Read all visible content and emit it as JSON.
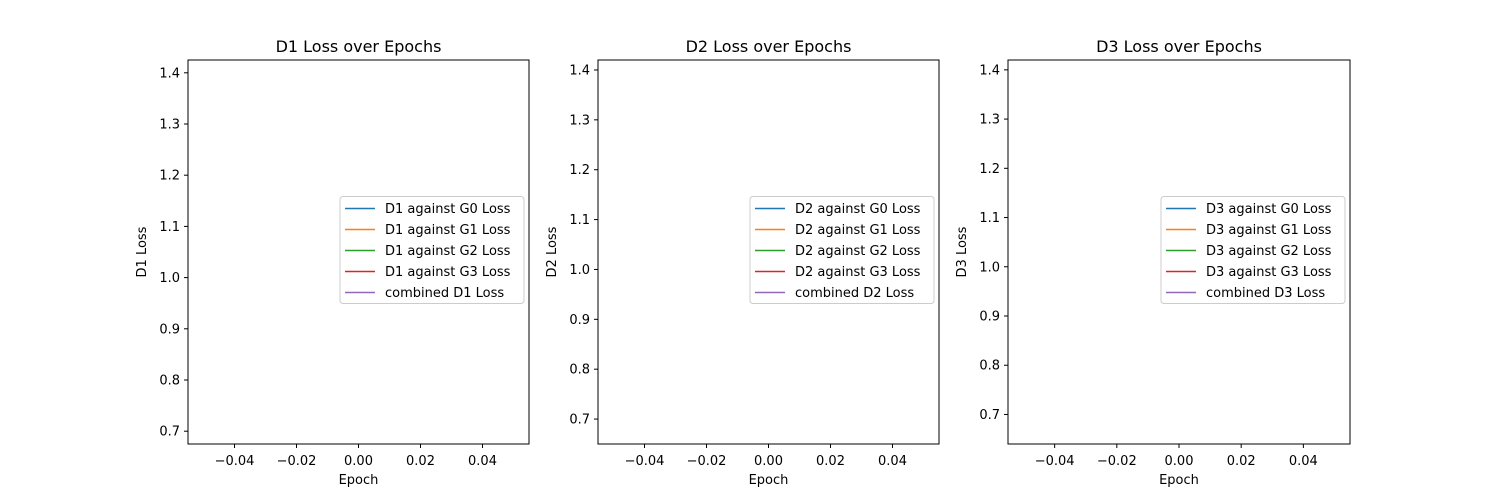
{
  "chart_data": [
    {
      "type": "line",
      "title": "D1 Loss over Epochs",
      "xlabel": "Epoch",
      "ylabel": "D1 Loss",
      "xlim": [
        -0.055,
        0.055
      ],
      "ylim": [
        0.675,
        1.425
      ],
      "xticks": [
        -0.04,
        -0.02,
        0.0,
        0.02,
        0.04
      ],
      "xtick_labels": [
        "−0.04",
        "−0.02",
        "0.00",
        "0.02",
        "0.04"
      ],
      "yticks": [
        0.7,
        0.8,
        0.9,
        1.0,
        1.1,
        1.2,
        1.3,
        1.4
      ],
      "ytick_labels": [
        "0.7",
        "0.8",
        "0.9",
        "1.0",
        "1.1",
        "1.2",
        "1.3",
        "1.4"
      ],
      "grid": false,
      "legend_position": "center-right",
      "series": [
        {
          "name": "D1 against G0 Loss",
          "color": "#1f77b4",
          "x": [],
          "y": []
        },
        {
          "name": "D1 against G1 Loss",
          "color": "#ff7f0e",
          "x": [],
          "y": []
        },
        {
          "name": "D1 against G2 Loss",
          "color": "#2ca02c",
          "x": [],
          "y": []
        },
        {
          "name": "D1 against G3 Loss",
          "color": "#d62728",
          "x": [],
          "y": []
        },
        {
          "name": "combined D1 Loss",
          "color": "#9467bd",
          "x": [],
          "y": []
        }
      ]
    },
    {
      "type": "line",
      "title": "D2 Loss over Epochs",
      "xlabel": "Epoch",
      "ylabel": "D2 Loss",
      "xlim": [
        -0.055,
        0.055
      ],
      "ylim": [
        0.65,
        1.42
      ],
      "xticks": [
        -0.04,
        -0.02,
        0.0,
        0.02,
        0.04
      ],
      "xtick_labels": [
        "−0.04",
        "−0.02",
        "0.00",
        "0.02",
        "0.04"
      ],
      "yticks": [
        0.7,
        0.8,
        0.9,
        1.0,
        1.1,
        1.2,
        1.3,
        1.4
      ],
      "ytick_labels": [
        "0.7",
        "0.8",
        "0.9",
        "1.0",
        "1.1",
        "1.2",
        "1.3",
        "1.4"
      ],
      "grid": false,
      "legend_position": "center-right",
      "series": [
        {
          "name": "D2 against G0 Loss",
          "color": "#1f77b4",
          "x": [],
          "y": []
        },
        {
          "name": "D2 against G1 Loss",
          "color": "#ff7f0e",
          "x": [],
          "y": []
        },
        {
          "name": "D2 against G2 Loss",
          "color": "#2ca02c",
          "x": [],
          "y": []
        },
        {
          "name": "D2 against G3 Loss",
          "color": "#d62728",
          "x": [],
          "y": []
        },
        {
          "name": "combined D2 Loss",
          "color": "#9467bd",
          "x": [],
          "y": []
        }
      ]
    },
    {
      "type": "line",
      "title": "D3 Loss over Epochs",
      "xlabel": "Epoch",
      "ylabel": "D3 Loss",
      "xlim": [
        -0.055,
        0.055
      ],
      "ylim": [
        0.64,
        1.42
      ],
      "xticks": [
        -0.04,
        -0.02,
        0.0,
        0.02,
        0.04
      ],
      "xtick_labels": [
        "−0.04",
        "−0.02",
        "0.00",
        "0.02",
        "0.04"
      ],
      "yticks": [
        0.7,
        0.8,
        0.9,
        1.0,
        1.1,
        1.2,
        1.3,
        1.4
      ],
      "ytick_labels": [
        "0.7",
        "0.8",
        "0.9",
        "1.0",
        "1.1",
        "1.2",
        "1.3",
        "1.4"
      ],
      "grid": false,
      "legend_position": "center-right",
      "series": [
        {
          "name": "D3 against G0 Loss",
          "color": "#1f77b4",
          "x": [],
          "y": []
        },
        {
          "name": "D3 against G1 Loss",
          "color": "#ff7f0e",
          "x": [],
          "y": []
        },
        {
          "name": "D3 against G2 Loss",
          "color": "#2ca02c",
          "x": [],
          "y": []
        },
        {
          "name": "D3 against G3 Loss",
          "color": "#d62728",
          "x": [],
          "y": []
        },
        {
          "name": "combined D3 Loss",
          "color": "#9467bd",
          "x": [],
          "y": []
        }
      ]
    }
  ]
}
